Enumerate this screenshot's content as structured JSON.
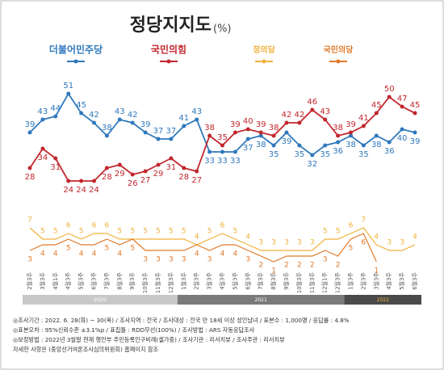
{
  "chart_data": {
    "type": "line",
    "title": "정당지지도",
    "unit": "(%)",
    "categories": [
      "2월3주",
      "3월3주",
      "4월1주",
      "4월3주",
      "5월3주",
      "6월3주",
      "7월3주",
      "8월3주",
      "9월3주",
      "10월3주",
      "11월3주",
      "12월3주",
      "1월3주",
      "2월3주",
      "3월3주",
      "4월3주",
      "5월3주",
      "6월3주",
      "7월3주",
      "8월3주",
      "9월3주",
      "10월3주",
      "11월3주",
      "12월1주",
      "12월3주",
      "1월3주",
      "2월3주",
      "3월3주",
      "4월3주",
      "5월3주",
      "6월3주"
    ],
    "series": [
      {
        "name": "더불어민주당",
        "color": "#2f78bd",
        "values": [
          39,
          43,
          44,
          51,
          45,
          42,
          38,
          43,
          42,
          39,
          37,
          37,
          41,
          43,
          33,
          33,
          33,
          37,
          38,
          35,
          39,
          35,
          32,
          35,
          36,
          38,
          35,
          38,
          36,
          40,
          39
        ]
      },
      {
        "name": "국민의힘",
        "color": "#c1272d",
        "values": [
          28,
          34,
          31,
          24,
          24,
          24,
          28,
          29,
          26,
          27,
          29,
          31,
          28,
          27,
          38,
          35,
          39,
          40,
          39,
          38,
          42,
          42,
          46,
          43,
          38,
          39,
          41,
          45,
          50,
          47,
          45
        ]
      },
      {
        "name": "정의당",
        "color": "#f0b13a",
        "axis": "y2",
        "values": [
          7,
          5,
          5,
          6,
          5,
          6,
          6,
          5,
          5,
          5,
          5,
          5,
          5,
          4,
          5,
          6,
          5,
          4,
          3,
          3,
          3,
          3,
          3,
          5,
          5,
          6,
          7,
          4,
          3,
          3,
          4
        ]
      },
      {
        "name": "국민의당",
        "color": "#e27a2a",
        "axis": "y2",
        "values": [
          3,
          4,
          4,
          5,
          4,
          4,
          5,
          4,
          5,
          3,
          3,
          3,
          3,
          4,
          3,
          4,
          4,
          3,
          2,
          1,
          2,
          2,
          2,
          3,
          2,
          5,
          6,
          1,
          null,
          null,
          null
        ]
      }
    ],
    "ylim": [
      20,
      55
    ],
    "y2lim": [
      0,
      8
    ],
    "periods": [
      {
        "label": "2020",
        "start": 0,
        "end": 11
      },
      {
        "label": "2021",
        "start": 12,
        "end": 24
      },
      {
        "label": "2022",
        "start": 25,
        "end": 30
      }
    ],
    "notes": [
      "◎조사기간 : 2022. 6. 28(화) ~ 30(목) / 조사지역 : 전국 / 조사대상 : 전국 만 18세 이상 성인남녀 / 표본수 : 1,000명 / 응답률 : 4.8%",
      "◎표본오차 : 95%신뢰수준 ±3.1%p / 표집틀 : RDD무선(100%) / 조사방법 : ARS 자동응답조사",
      "◎보정방법 : 2022년 3월말 현재 행안부 주민등록인구비례(셀가중) / 조사기관 : 리서치뷰 / 조사주관 : 리서치뷰",
      "자세한 사항은 (중앙선거여론조사심의위원회) 홈페이지 참조"
    ]
  }
}
